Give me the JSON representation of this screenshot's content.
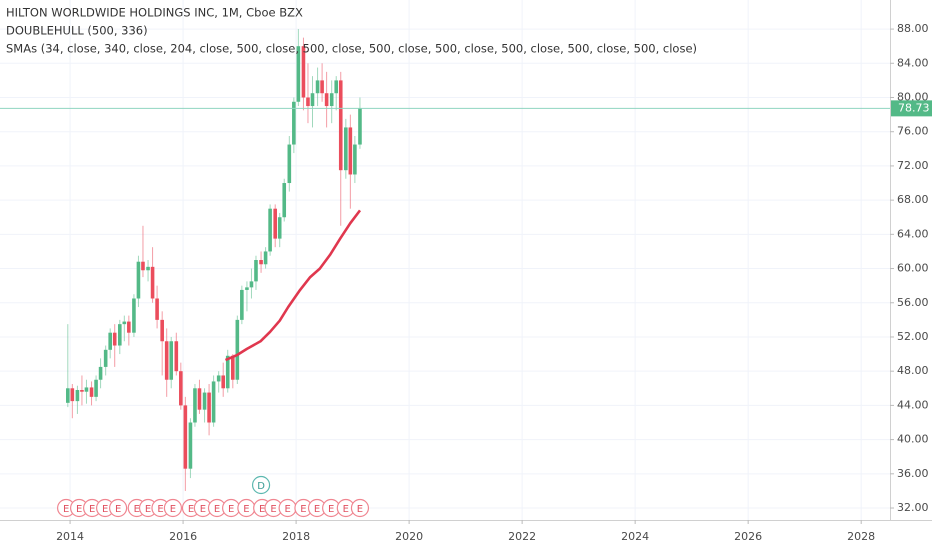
{
  "chart_data": {
    "type": "candlestick",
    "title": "HILTON WORLDWIDE HOLDINGS INC, 1M, Cboe BZX",
    "subtitle": "DOUBLEHULL (500, 336)",
    "indicator_label": "SMAs (34, close, 340, close, 204, close, 500, close, 500, close, 500, close, 500, close, 500, close, 500, close, 500, close)",
    "up_color": "#53b987",
    "down_color": "#eb4d5c",
    "x": [
      2013.96,
      2014.04,
      2014.13,
      2014.21,
      2014.29,
      2014.38,
      2014.46,
      2014.54,
      2014.63,
      2014.71,
      2014.79,
      2014.88,
      2014.96,
      2015.04,
      2015.13,
      2015.21,
      2015.29,
      2015.38,
      2015.46,
      2015.54,
      2015.63,
      2015.71,
      2015.79,
      2015.88,
      2015.96,
      2016.04,
      2016.13,
      2016.21,
      2016.29,
      2016.38,
      2016.46,
      2016.54,
      2016.63,
      2016.71,
      2016.79,
      2016.88,
      2016.96,
      2017.04,
      2017.13,
      2017.21,
      2017.29,
      2017.38,
      2017.46,
      2017.54,
      2017.63,
      2017.71,
      2017.79,
      2017.88,
      2017.96,
      2018.04,
      2018.13,
      2018.21,
      2018.29,
      2018.38,
      2018.46,
      2018.54,
      2018.63,
      2018.71,
      2018.79,
      2018.88,
      2018.96,
      2019.04,
      2019.13
    ],
    "open": [
      44.3,
      46.0,
      44.5,
      45.8,
      45.6,
      46.1,
      45.0,
      47.0,
      48.5,
      50.5,
      52.5,
      51.0,
      53.5,
      53.8,
      52.5,
      56.5,
      60.8,
      59.8,
      60.2,
      56.5,
      54.0,
      51.5,
      47.0,
      51.5,
      48.0,
      44.0,
      36.6,
      42.0,
      46.0,
      43.5,
      45.5,
      42.0,
      46.8,
      47.5,
      46.0,
      49.8,
      47.0,
      54.0,
      57.5,
      57.8,
      58.5,
      61.0,
      60.5,
      62.0,
      67.0,
      63.5,
      66.0,
      70.0,
      74.5,
      79.5,
      86.0,
      80.0,
      79.0,
      80.5,
      82.0,
      80.5,
      79.0,
      80.5,
      82.0,
      71.5,
      76.5,
      71.0,
      74.5
    ],
    "high": [
      53.5,
      46.5,
      46.3,
      47.5,
      47.0,
      46.8,
      47.5,
      49.5,
      51.0,
      53.0,
      53.5,
      54.0,
      54.5,
      54.5,
      57.0,
      61.5,
      65.0,
      61.0,
      62.5,
      58.0,
      55.0,
      53.0,
      52.0,
      52.5,
      49.0,
      45.0,
      42.5,
      46.5,
      47.0,
      46.0,
      46.5,
      47.5,
      48.0,
      49.0,
      50.5,
      50.0,
      54.5,
      58.0,
      58.5,
      60.0,
      61.5,
      62.0,
      62.5,
      67.5,
      67.5,
      66.5,
      70.5,
      75.5,
      80.0,
      88.0,
      87.0,
      84.0,
      82.5,
      83.5,
      84.0,
      83.0,
      82.0,
      82.5,
      83.0,
      77.5,
      78.0,
      75.5,
      80.0
    ],
    "low": [
      43.8,
      42.5,
      43.0,
      44.0,
      44.2,
      44.0,
      44.5,
      46.0,
      47.5,
      49.5,
      48.5,
      50.0,
      51.5,
      51.0,
      52.0,
      55.5,
      59.0,
      58.5,
      56.0,
      53.0,
      47.5,
      45.0,
      46.0,
      47.5,
      43.5,
      34.0,
      35.5,
      41.5,
      43.0,
      42.0,
      40.5,
      41.5,
      45.5,
      45.0,
      45.5,
      46.0,
      46.5,
      53.5,
      55.0,
      56.5,
      57.5,
      59.5,
      60.0,
      61.5,
      62.5,
      62.5,
      65.5,
      69.0,
      73.5,
      79.0,
      78.5,
      77.0,
      76.5,
      79.0,
      79.5,
      76.5,
      77.0,
      78.5,
      65.0,
      70.5,
      67.0,
      70.0,
      74.0
    ],
    "close": [
      46.0,
      44.5,
      45.8,
      45.6,
      46.1,
      45.0,
      47.0,
      48.5,
      50.5,
      52.5,
      51.0,
      53.5,
      53.8,
      52.5,
      56.5,
      60.8,
      59.8,
      60.2,
      56.5,
      54.0,
      51.5,
      47.0,
      51.5,
      48.0,
      44.0,
      36.6,
      42.0,
      46.0,
      43.5,
      45.5,
      42.0,
      46.8,
      47.5,
      46.0,
      49.8,
      47.0,
      54.0,
      57.5,
      57.8,
      58.5,
      61.0,
      60.5,
      62.0,
      67.0,
      63.5,
      66.0,
      70.0,
      74.5,
      79.5,
      86.0,
      80.0,
      79.0,
      80.5,
      82.0,
      80.5,
      79.0,
      80.5,
      82.0,
      71.5,
      76.5,
      71.0,
      74.5,
      78.73
    ],
    "sma": {
      "color": "#e0374e",
      "x": [
        2016.75,
        2016.96,
        2017.13,
        2017.37,
        2017.54,
        2017.71,
        2017.86,
        2018.07,
        2018.25,
        2018.42,
        2018.6,
        2018.78,
        2018.96,
        2019.13
      ],
      "values": [
        49.3,
        49.9,
        50.6,
        51.5,
        52.6,
        53.9,
        55.5,
        57.5,
        59.0,
        60.0,
        61.6,
        63.5,
        65.3,
        66.8
      ]
    },
    "last_price": 78.73,
    "last_price_color": "#53b987",
    "events": [
      {
        "x": 2013.93,
        "label": "E"
      },
      {
        "x": 2014.16,
        "label": "E"
      },
      {
        "x": 2014.39,
        "label": "E"
      },
      {
        "x": 2014.62,
        "label": "E"
      },
      {
        "x": 2014.85,
        "label": "E"
      },
      {
        "x": 2015.18,
        "label": "E"
      },
      {
        "x": 2015.38,
        "label": "E"
      },
      {
        "x": 2015.6,
        "label": "E"
      },
      {
        "x": 2015.82,
        "label": "E"
      },
      {
        "x": 2016.14,
        "label": "E"
      },
      {
        "x": 2016.35,
        "label": "E"
      },
      {
        "x": 2016.6,
        "label": "E"
      },
      {
        "x": 2016.85,
        "label": "E"
      },
      {
        "x": 2017.12,
        "label": "E"
      },
      {
        "x": 2017.4,
        "label": "E"
      },
      {
        "x": 2017.6,
        "label": "E"
      },
      {
        "x": 2017.85,
        "label": "E"
      },
      {
        "x": 2018.13,
        "label": "E"
      },
      {
        "x": 2018.37,
        "label": "E"
      },
      {
        "x": 2018.62,
        "label": "E"
      },
      {
        "x": 2018.88,
        "label": "E"
      },
      {
        "x": 2019.13,
        "label": "E"
      }
    ],
    "dividend": {
      "x": 2017.38,
      "label": "D"
    },
    "xlim": [
      2012.76,
      2028.51
    ],
    "xticks": [
      2014,
      2016,
      2018,
      2020,
      2022,
      2024,
      2026,
      2028
    ],
    "ylim": [
      30.6,
      91.4
    ],
    "yticks": [
      {
        "value": 32,
        "label": "32.00"
      },
      {
        "value": 36,
        "label": "36.00"
      },
      {
        "value": 40,
        "label": "40.00"
      },
      {
        "value": 44,
        "label": "44.00"
      },
      {
        "value": 48,
        "label": "48.00"
      },
      {
        "value": 52,
        "label": "52.00"
      },
      {
        "value": 56,
        "label": "56.00"
      },
      {
        "value": 60,
        "label": "60.00"
      },
      {
        "value": 64,
        "label": "64.00"
      },
      {
        "value": 68,
        "label": "68.00"
      },
      {
        "value": 72,
        "label": "72.00"
      },
      {
        "value": 76,
        "label": "76.00"
      },
      {
        "value": 80,
        "label": "80.00"
      },
      {
        "value": 84,
        "label": "84.00"
      },
      {
        "value": 88,
        "label": "88.00"
      }
    ],
    "grid": true
  }
}
